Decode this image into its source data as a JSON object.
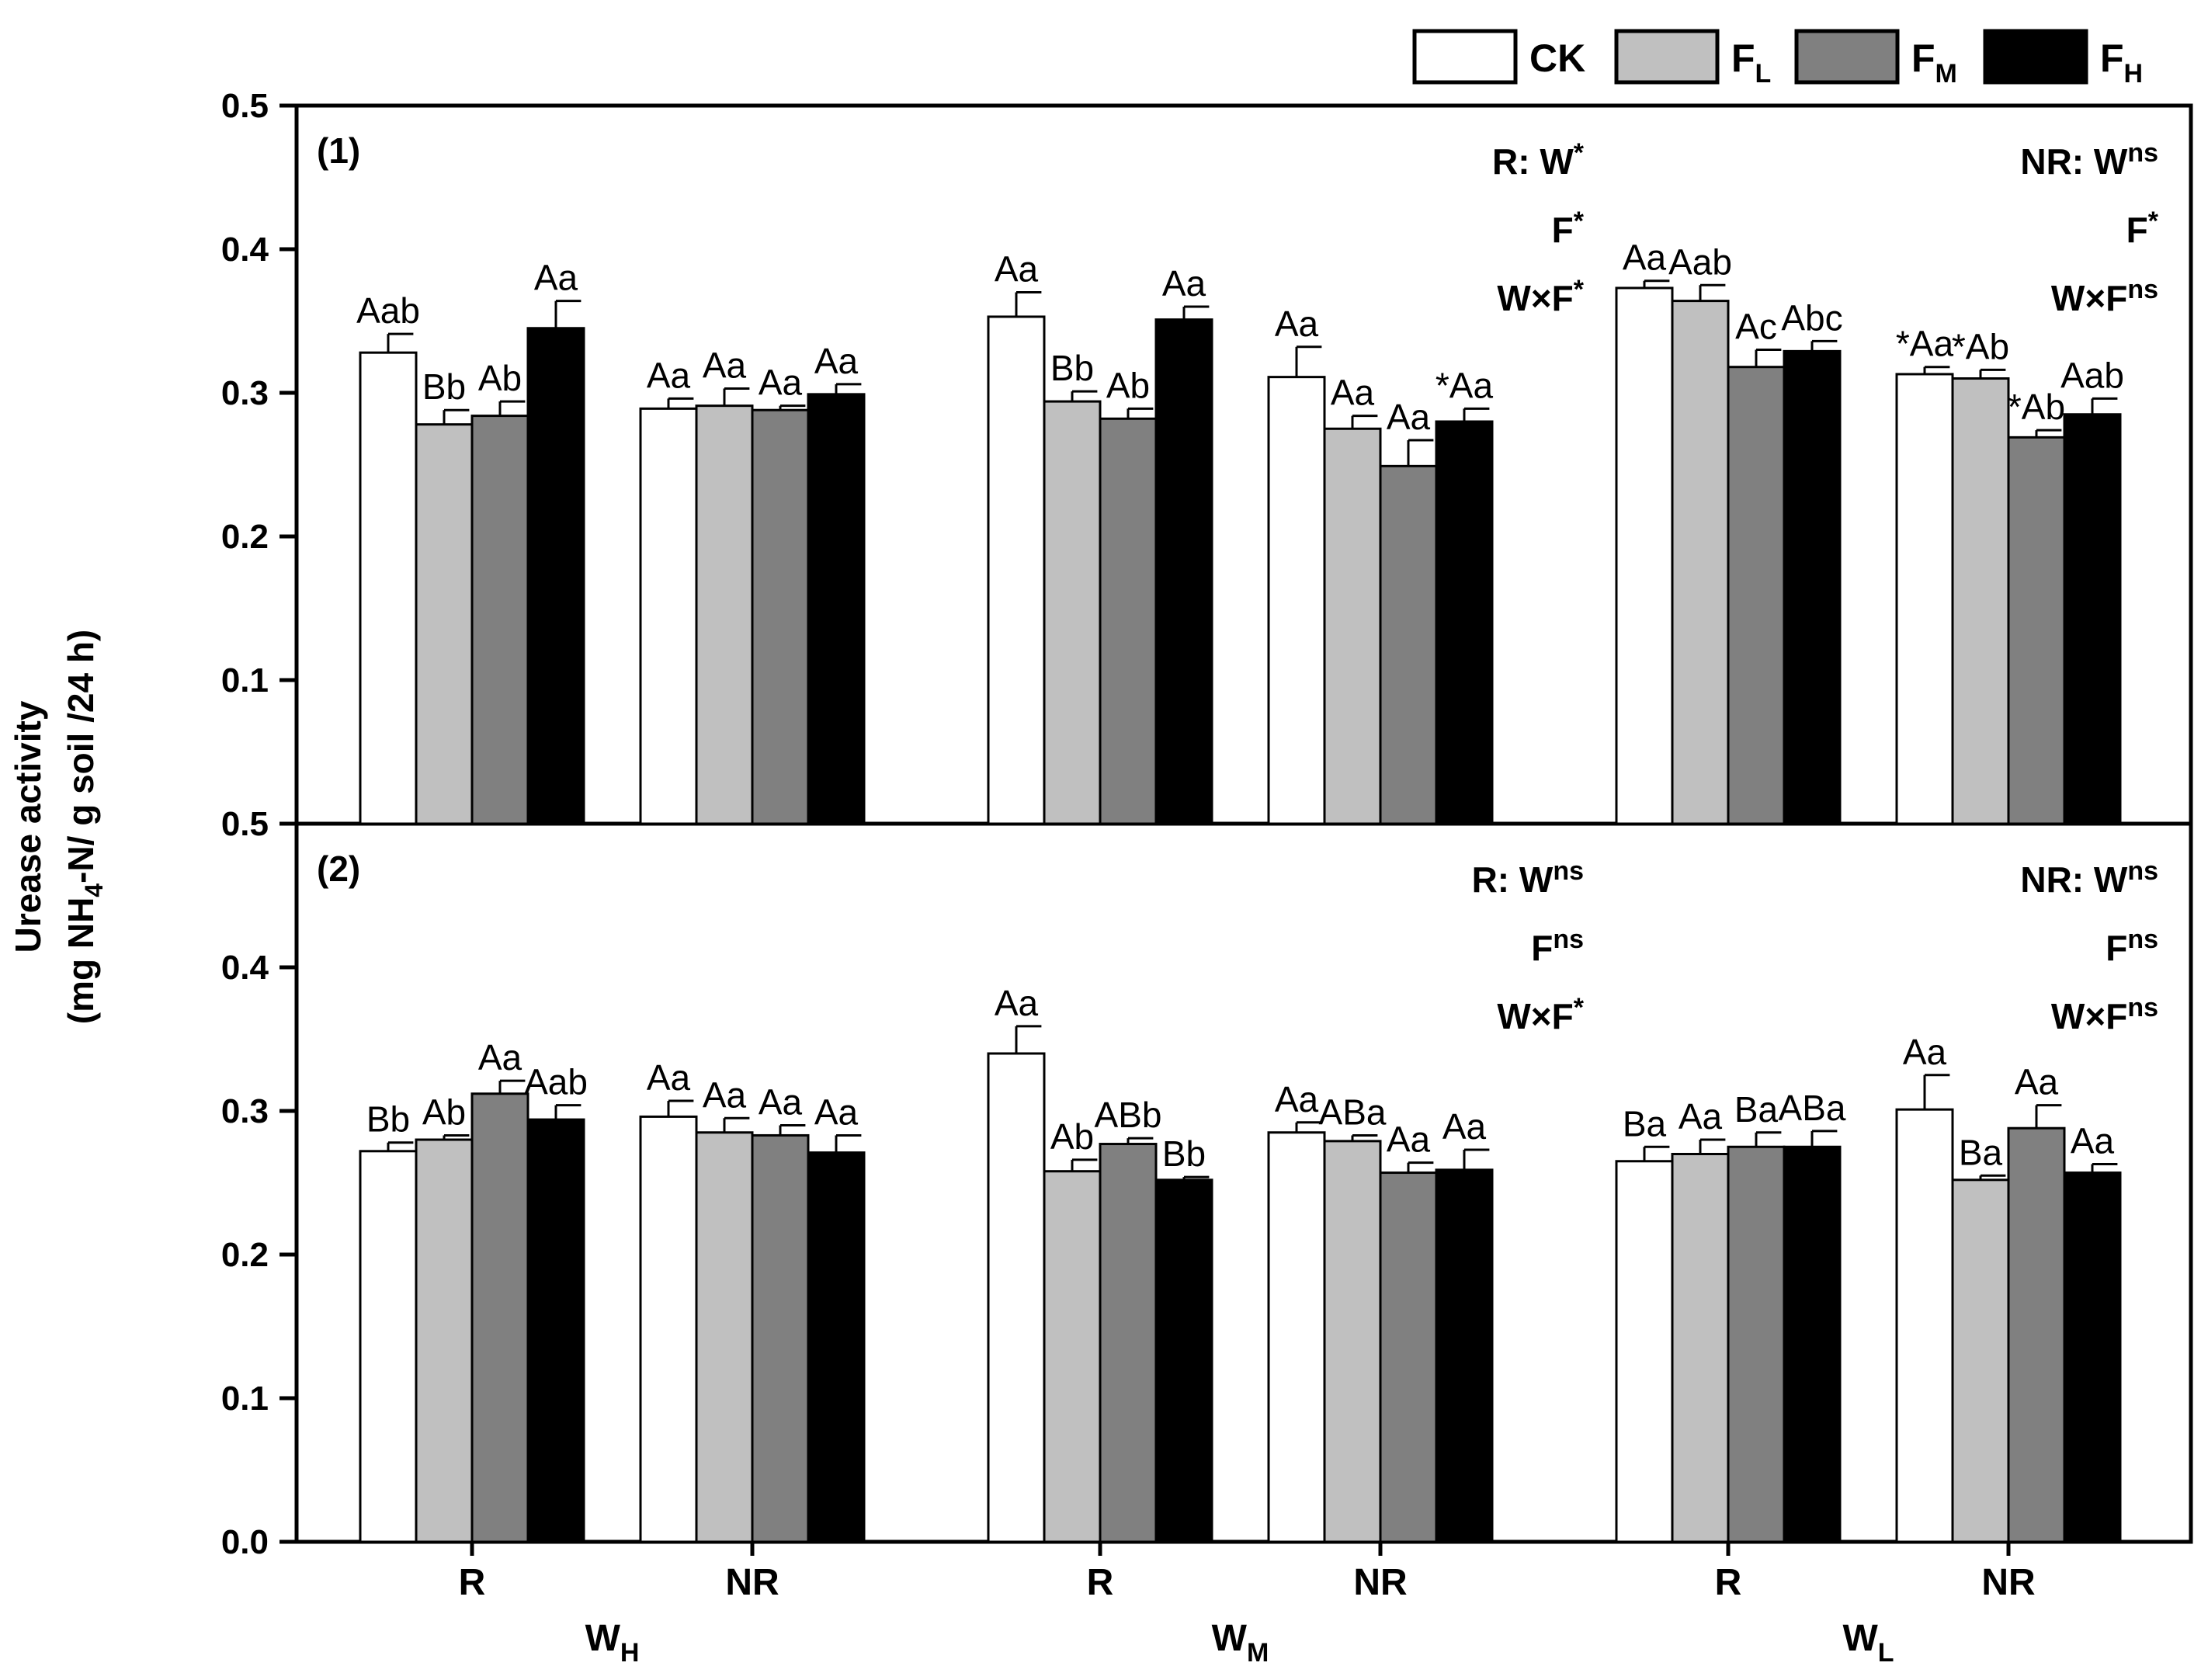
{
  "chart_data": {
    "type": "bar",
    "ylabel_line1": "Urease activity",
    "ylabel_line2_parts": [
      "(mg NH",
      "4",
      "-N/ g soil /24 h)"
    ],
    "legend": [
      {
        "label": "CK",
        "sub": "",
        "color": "#ffffff"
      },
      {
        "label": "F",
        "sub": "L",
        "color": "#c0c0c0"
      },
      {
        "label": "F",
        "sub": "M",
        "color": "#808080"
      },
      {
        "label": "F",
        "sub": "H",
        "color": "#000000"
      }
    ],
    "x_groups": [
      {
        "label": "R"
      },
      {
        "label": "NR"
      },
      {
        "label": "R"
      },
      {
        "label": "NR"
      },
      {
        "label": "R"
      },
      {
        "label": "NR"
      }
    ],
    "x_super_groups": [
      {
        "label": "W",
        "sub": "H"
      },
      {
        "label": "W",
        "sub": "M"
      },
      {
        "label": "W",
        "sub": "L"
      }
    ],
    "panels": [
      {
        "tag": "(1)",
        "ylim": [
          0,
          0.5
        ],
        "yticks": [
          {
            "value": 0.1,
            "label": "0.1"
          },
          {
            "value": 0.2,
            "label": "0.2"
          },
          {
            "value": 0.3,
            "label": "0.3"
          },
          {
            "value": 0.4,
            "label": "0.4"
          },
          {
            "value": 0.5,
            "label": "0.5"
          }
        ],
        "groups": [
          {
            "values": [
              0.328,
              0.278,
              0.284,
              0.345
            ],
            "errors": [
              0.013,
              0.01,
              0.01,
              0.019
            ],
            "labels": [
              "Aab",
              "Bb",
              "Ab",
              "Aa"
            ]
          },
          {
            "values": [
              0.289,
              0.291,
              0.288,
              0.299
            ],
            "errors": [
              0.007,
              0.012,
              0.003,
              0.007
            ],
            "labels": [
              "Aa",
              "Aa",
              "Aa",
              "Aa"
            ]
          },
          {
            "values": [
              0.353,
              0.294,
              0.282,
              0.351
            ],
            "errors": [
              0.017,
              0.007,
              0.007,
              0.009
            ],
            "labels": [
              "Aa",
              "Bb",
              "Ab",
              "Aa"
            ]
          },
          {
            "values": [
              0.311,
              0.275,
              0.249,
              0.28
            ],
            "errors": [
              0.021,
              0.009,
              0.018,
              0.009
            ],
            "labels": [
              "Aa",
              "Aa",
              "Aa",
              "*Aa"
            ]
          },
          {
            "values": [
              0.373,
              0.364,
              0.318,
              0.329
            ],
            "errors": [
              0.005,
              0.011,
              0.012,
              0.007
            ],
            "labels": [
              "Aa",
              "Aab",
              "Ac",
              "Abc"
            ]
          },
          {
            "values": [
              0.313,
              0.31,
              0.269,
              0.285
            ],
            "errors": [
              0.005,
              0.006,
              0.005,
              0.011
            ],
            "labels": [
              "*Aa",
              "*Ab",
              "*Ab",
              "Aab"
            ]
          }
        ],
        "stats": [
          {
            "lines": [
              {
                "text": "R: W",
                "sup": "*"
              },
              {
                "text": "F",
                "sup": "*"
              },
              {
                "text": "W×F",
                "sup": "*"
              }
            ]
          },
          {
            "lines": [
              {
                "text": "NR: W",
                "sup": "ns"
              },
              {
                "text": "F",
                "sup": "*"
              },
              {
                "text": "W×F",
                "sup": "ns"
              }
            ]
          }
        ]
      },
      {
        "tag": "(2)",
        "ylim": [
          0,
          0.5
        ],
        "yticks": [
          {
            "value": 0.0,
            "label": "0.0"
          },
          {
            "value": 0.1,
            "label": "0.1"
          },
          {
            "value": 0.2,
            "label": "0.2"
          },
          {
            "value": 0.3,
            "label": "0.3"
          },
          {
            "value": 0.4,
            "label": "0.4"
          },
          {
            "value": 0.5,
            "label": "0.5"
          }
        ],
        "groups": [
          {
            "values": [
              0.272,
              0.28,
              0.312,
              0.294
            ],
            "errors": [
              0.006,
              0.003,
              0.009,
              0.01
            ],
            "labels": [
              "Bb",
              "Ab",
              "Aa",
              "Aab"
            ]
          },
          {
            "values": [
              0.296,
              0.285,
              0.283,
              0.271
            ],
            "errors": [
              0.011,
              0.01,
              0.007,
              0.012
            ],
            "labels": [
              "Aa",
              "Aa",
              "Aa",
              "Aa"
            ]
          },
          {
            "values": [
              0.34,
              0.258,
              0.277,
              0.252
            ],
            "errors": [
              0.019,
              0.008,
              0.004,
              0.002
            ],
            "labels": [
              "Aa",
              "Ab",
              "ABb",
              "Bb"
            ]
          },
          {
            "values": [
              0.285,
              0.279,
              0.257,
              0.259
            ],
            "errors": [
              0.007,
              0.004,
              0.007,
              0.014
            ],
            "labels": [
              "Aa",
              "ABa",
              "Aa",
              "Aa"
            ]
          },
          {
            "values": [
              0.265,
              0.27,
              0.275,
              0.275
            ],
            "errors": [
              0.01,
              0.01,
              0.01,
              0.011
            ],
            "labels": [
              "Ba",
              "Aa",
              "Ba",
              "ABa"
            ]
          },
          {
            "values": [
              0.301,
              0.252,
              0.288,
              0.257
            ],
            "errors": [
              0.024,
              0.003,
              0.016,
              0.006
            ],
            "labels": [
              "Aa",
              "Ba",
              "Aa",
              "Aa"
            ]
          }
        ],
        "stats": [
          {
            "lines": [
              {
                "text": "R: W",
                "sup": "ns"
              },
              {
                "text": "F",
                "sup": "ns"
              },
              {
                "text": "W×F",
                "sup": "*"
              }
            ]
          },
          {
            "lines": [
              {
                "text": "NR: W",
                "sup": "ns"
              },
              {
                "text": "F",
                "sup": "ns"
              },
              {
                "text": "W×F",
                "sup": "ns"
              }
            ]
          }
        ]
      }
    ]
  }
}
